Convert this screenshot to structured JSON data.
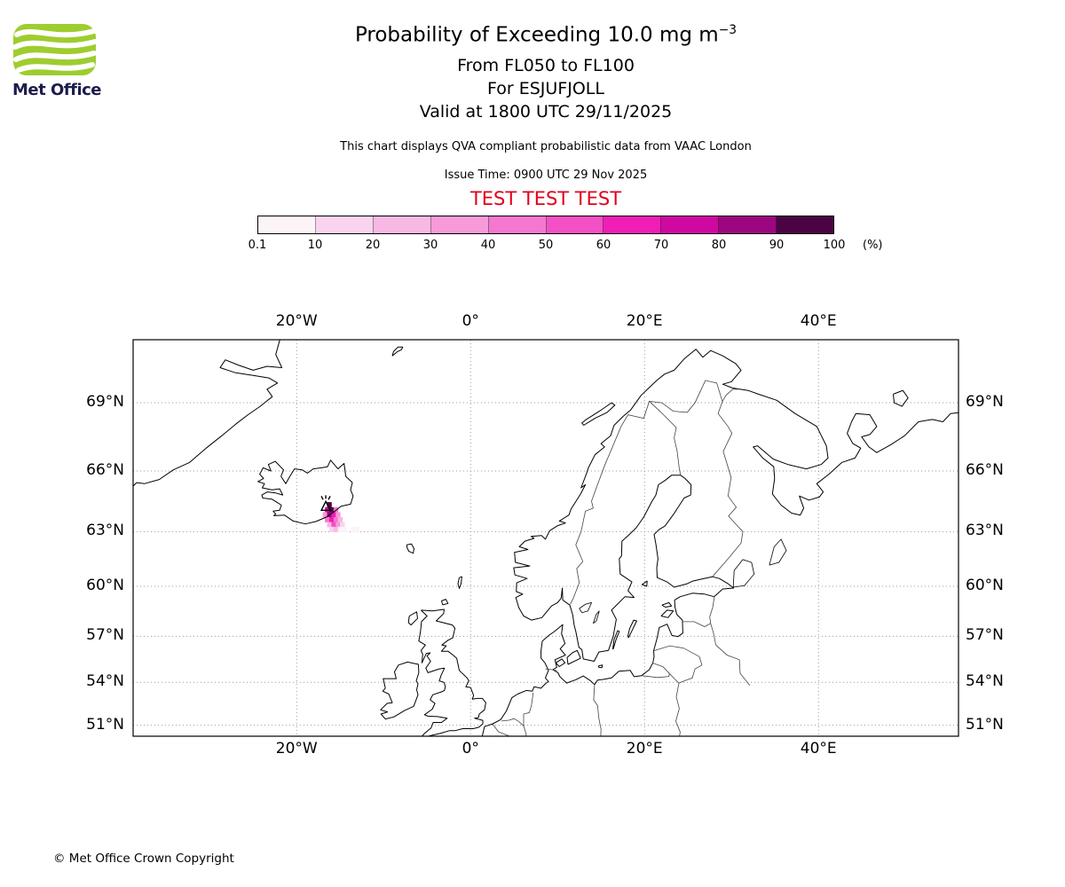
{
  "header": {
    "logo_text": "Met Office",
    "title_prefix": "Probability of Exceeding 10.0 mg m",
    "title_sup": "−3",
    "subtitle1": "From FL050 to FL100",
    "subtitle2": "For ESJUFJOLL",
    "subtitle3": "Valid at 1800 UTC 29/11/2025",
    "note": "This chart displays QVA compliant probabilistic data from VAAC London",
    "issue_time": "Issue Time: 0900 UTC 29 Nov 2025",
    "test_banner": "TEST TEST TEST",
    "test_color": "#e2001a"
  },
  "colorbar": {
    "ticks": [
      "0.1",
      "10",
      "20",
      "30",
      "40",
      "50",
      "60",
      "70",
      "80",
      "90",
      "100"
    ],
    "unit": "(%)",
    "thresholds": [
      0.1,
      10,
      20,
      30,
      40,
      50,
      60,
      70,
      80,
      90
    ],
    "colors": [
      "#fdf4fa",
      "#fad4ee",
      "#f8b8e4",
      "#f69ad9",
      "#f478cf",
      "#f250c4",
      "#ef1eb6",
      "#d008a2",
      "#9c0780",
      "#4c0343"
    ]
  },
  "map": {
    "lat_ticks": [
      {
        "value": 69,
        "label": "69°N"
      },
      {
        "value": 66,
        "label": "66°N"
      },
      {
        "value": 63,
        "label": "63°N"
      },
      {
        "value": 60,
        "label": "60°N"
      },
      {
        "value": 57,
        "label": "57°N"
      },
      {
        "value": 54,
        "label": "54°N"
      },
      {
        "value": 51,
        "label": "51°N"
      }
    ],
    "lon_ticks": [
      {
        "value": -20,
        "label": "20°W"
      },
      {
        "value": 0,
        "label": "0°"
      },
      {
        "value": 20,
        "label": "20°E"
      },
      {
        "value": 40,
        "label": "40°E"
      }
    ]
  },
  "chart_data": {
    "type": "heatmap",
    "title": "Probability of Exceeding 10.0 mg m-3",
    "flight_levels": "FL050 to FL100",
    "volcano": {
      "name": "ESJUFJOLL",
      "lon": -16.65,
      "lat": 64.27
    },
    "valid_time": "1800 UTC 29/11/2025",
    "issue_time": "0900 UTC 29 Nov 2025",
    "units": "%",
    "projection": "mercator",
    "extent": {
      "lon": [
        -38.8,
        56.1
      ],
      "lat": [
        50.1,
        71.45
      ]
    },
    "cell_size": {
      "dlon": 0.5,
      "dlat": 0.25
    },
    "cells": [
      [
        -16.5,
        64.25,
        90
      ],
      [
        -16.75,
        64.0,
        70
      ],
      [
        -16.25,
        64.0,
        95
      ],
      [
        -15.75,
        64.0,
        45
      ],
      [
        -17.0,
        63.75,
        30
      ],
      [
        -16.5,
        63.75,
        80
      ],
      [
        -16.0,
        63.75,
        60
      ],
      [
        -15.5,
        63.75,
        35
      ],
      [
        -16.75,
        63.5,
        45
      ],
      [
        -16.25,
        63.5,
        65
      ],
      [
        -15.75,
        63.5,
        45
      ],
      [
        -15.25,
        63.5,
        20
      ],
      [
        -16.5,
        63.25,
        25
      ],
      [
        -16.0,
        63.25,
        55
      ],
      [
        -15.5,
        63.25,
        30
      ],
      [
        -15.0,
        63.25,
        10
      ],
      [
        -16.25,
        63.0,
        10
      ],
      [
        -15.75,
        63.0,
        20
      ],
      [
        -15.25,
        63.0,
        8
      ],
      [
        -14.75,
        63.0,
        4
      ],
      [
        -13.75,
        63.0,
        2
      ],
      [
        -13.25,
        63.0,
        1
      ]
    ]
  },
  "footer": {
    "copyright": "© Met Office Crown Copyright"
  }
}
